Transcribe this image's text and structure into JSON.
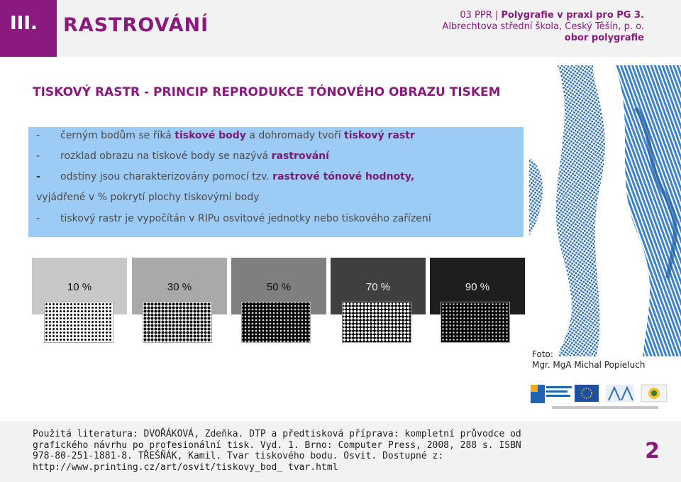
{
  "header": {
    "section_number": "III.",
    "section_title": "RASTROVÁNÍ",
    "course_prefix": "03 PPR | ",
    "course_name": "Polygrafie v praxi pro PG 3.",
    "school": "Albrechtova střední škola, Český Těšín, p. o.",
    "program": "obor polygrafie"
  },
  "subtitle": "TISKOVÝ RASTR - PRINCIP REPRODUKCE TÓNOVÉHO OBRAZU TISKEM",
  "bullets": {
    "b1": {
      "dash": "-",
      "pre": "černým bodům se říká ",
      "k1": "tiskové body",
      "mid": " a dohromady tvoří ",
      "k2": "tiskový rastr"
    },
    "b2": {
      "dash": "-",
      "pre": "rozklad obrazu na tiskové body se nazývá ",
      "k1": "rastrování"
    },
    "b3": {
      "dash": "-",
      "pre": "odstíny jsou charakterizovány pomocí tzv. ",
      "k1": "rastrové tónové hodnoty,"
    },
    "b3_cont": "vyjádřené v % pokrytí plochy tiskovými body",
    "b4": {
      "dash": "-",
      "pre": "tiskový rastr je vypočítán v RIPu osvitové jednotky nebo tiskového zařízení"
    }
  },
  "swatches": [
    {
      "label": "10 %",
      "bg": "#c8c8c8",
      "text_color": "#111111"
    },
    {
      "label": "30 %",
      "bg": "#a9a9a9",
      "text_color": "#111111"
    },
    {
      "label": "50 %",
      "bg": "#7f7f7f",
      "text_color": "#111111"
    },
    {
      "label": "70 %",
      "bg": "#3f3f3f",
      "text_color": "#f0f0f0"
    },
    {
      "label": "90 %",
      "bg": "#1e1e1e",
      "text_color": "#f0f0f0"
    }
  ],
  "photo_credit": {
    "line1": "Foto:",
    "line2": "Mgr. MgA Michal Popieluch"
  },
  "footer": {
    "literature": "Použitá literatura: DVOŘÁKOVÁ, Zdeňka. DTP a předtisková příprava: kompletní průvodce od grafického návrhu po profesionální tisk. Vyd. 1. Brno: Computer Press, 2008, 288 s. ISBN 978-80-251-1881-8. TŘEŠŇÁK, Kamil. Tvar tiskového bodu. Osvit. Dostupné z: http://www.printing.cz/art/osvit/tiskovy_bod_ tvar.html",
    "page_number": "2"
  },
  "colors": {
    "brand": "#8b1a7e",
    "blue_box": "#9ccbf6",
    "keyword": "#7a1c6c",
    "photo_blue": "#2e6fb7"
  }
}
